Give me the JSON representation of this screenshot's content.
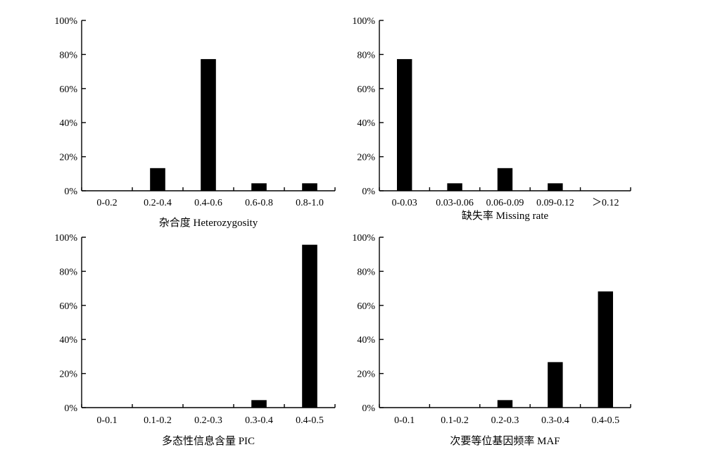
{
  "chart_data": [
    {
      "type": "bar",
      "xlabel": "杂合度 Heterozygosity",
      "ylabel": "",
      "ylim": [
        0,
        100
      ],
      "yticks": [
        "0%",
        "20%",
        "40%",
        "60%",
        "80%",
        "100%"
      ],
      "categories": [
        "0-0.2",
        "0.2-0.4",
        "0.4-0.6",
        "0.6-0.8",
        "0.8-1.0"
      ],
      "values": [
        0,
        13.3,
        77.3,
        4.4,
        4.4
      ]
    },
    {
      "type": "bar",
      "xlabel": "缺失率 Missing rate",
      "ylabel": "",
      "ylim": [
        0,
        100
      ],
      "yticks": [
        "0%",
        "20%",
        "40%",
        "60%",
        "80%",
        "100%"
      ],
      "categories": [
        "0-0.03",
        "0.03-0.06",
        "0.06-0.09",
        "0.09-0.12",
        "＞0.12"
      ],
      "values": [
        77.3,
        4.4,
        13.3,
        4.4,
        0
      ]
    },
    {
      "type": "bar",
      "xlabel": "多态性信息含量 PIC",
      "ylabel": "",
      "ylim": [
        0,
        100
      ],
      "yticks": [
        "0%",
        "20%",
        "40%",
        "60%",
        "80%",
        "100%"
      ],
      "categories": [
        "0-0.1",
        "0.1-0.2",
        "0.2-0.3",
        "0.3-0.4",
        "0.4-0.5"
      ],
      "values": [
        0,
        0,
        0,
        4.4,
        95.6
      ]
    },
    {
      "type": "bar",
      "xlabel": "次要等位基因频率 MAF",
      "ylabel": "",
      "ylim": [
        0,
        100
      ],
      "yticks": [
        "0%",
        "20%",
        "40%",
        "60%",
        "80%",
        "100%"
      ],
      "categories": [
        "0-0.1",
        "0.1-0.2",
        "0.2-0.3",
        "0.3-0.4",
        "0.4-0.5"
      ],
      "values": [
        0,
        0,
        4.4,
        26.7,
        68.2
      ]
    }
  ]
}
